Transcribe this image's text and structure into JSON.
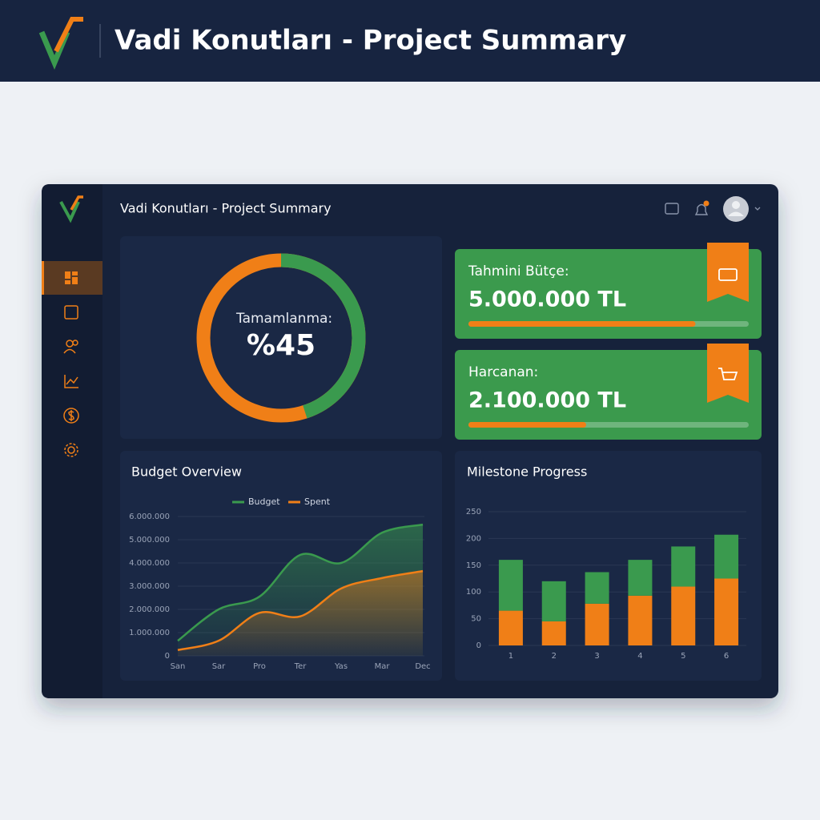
{
  "header": {
    "title": "Vadi Konutları - Project Summary"
  },
  "app": {
    "title": "Vadi Konutları - Project Summary"
  },
  "completion": {
    "label": "Tamamlanma:",
    "value": 45,
    "value_label": "%45",
    "color": "#3a9a4e",
    "rest_color": "#f07f17"
  },
  "cards": [
    {
      "label": "Tahmini Bütçe:",
      "value": "5.000.000 TL",
      "progress": 81
    },
    {
      "label": "Harcanan:",
      "value": "2.100.000 TL",
      "progress": 42
    }
  ],
  "budget_chart": {
    "type": "line",
    "title": "Budget Overview",
    "categories": [
      "San",
      "Sar",
      "Pro",
      "Ter",
      "Yas",
      "Mar",
      "Dec"
    ],
    "series": [
      {
        "name": "Budget",
        "color": "#3a9a4e",
        "values": [
          650000,
          2000000,
          2550000,
          4350000,
          4000000,
          5300000,
          5650000
        ]
      },
      {
        "name": "Spent",
        "color": "#f07f17",
        "values": [
          250000,
          650000,
          1850000,
          1700000,
          2900000,
          3350000,
          3650000
        ]
      }
    ],
    "ylim": [
      0,
      6000000
    ],
    "yticks": [
      0,
      {
        "value": 1000000,
        "label": "1.000.000"
      },
      {
        "value": 2000000,
        "label": "2.000.000"
      },
      {
        "value": 3000000,
        "label": "3.000.000"
      },
      {
        "value": 4000000,
        "label": "4.000.000"
      },
      {
        "value": 5000000,
        "label": "5.000.000"
      },
      {
        "value": 6000000,
        "label": "6.000.000"
      }
    ],
    "grid": true
  },
  "milestone_chart": {
    "type": "bar",
    "title": "Milestone Progress",
    "stacked": true,
    "categories": [
      "1",
      "2",
      "3",
      "4",
      "5",
      "6"
    ],
    "series": [
      {
        "color": "#f07f17",
        "values": [
          65,
          45,
          78,
          93,
          110,
          125
        ]
      },
      {
        "color": "#3a9a4e",
        "values": [
          95,
          75,
          59,
          67,
          75,
          82
        ]
      }
    ],
    "ylim": [
      0,
      250
    ],
    "yticks": [
      0,
      50,
      100,
      150,
      200,
      250
    ],
    "grid": true
  }
}
